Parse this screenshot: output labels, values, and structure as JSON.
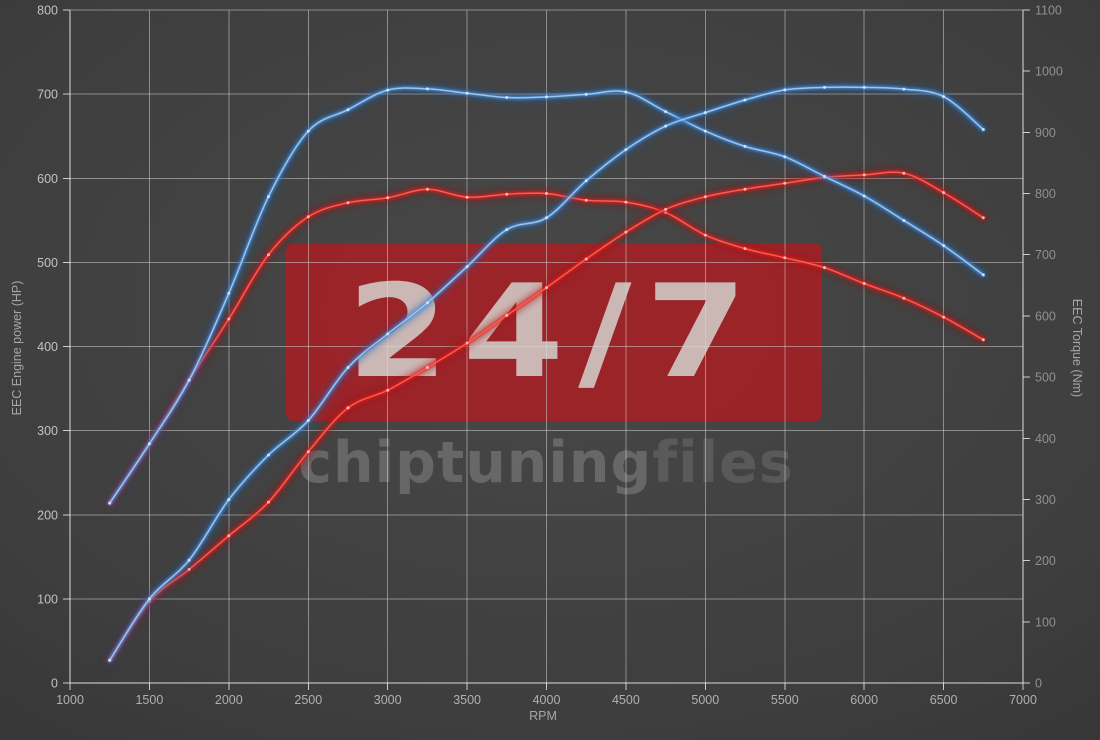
{
  "palette": {
    "bg_center": "#484848",
    "bg_mid": "#3e3e3e",
    "bg_deep": "#323232",
    "bg_edge": "#262626",
    "grid": "rgba(218,218,218,0.50)",
    "frame": "rgba(240,240,240,0.80)",
    "tick_label": "#c2c2c2",
    "tick_label_right": "#909090",
    "tick_label_bottom": "#b0b0b0",
    "axis_title": "#a6a6a6",
    "watermark_box": "rgba(176,28,34,0.80)",
    "watermark_big": "rgba(208,201,196,0.90)",
    "watermark_strong": "rgba(255,255,255,0.19)",
    "watermark_light": "rgba(255,255,255,0.12)"
  },
  "watermark": {
    "big": "24/7",
    "brand_strong": "chiptuning",
    "brand_light": "files"
  },
  "chart_data": {
    "type": "line",
    "title": "",
    "xlabel": "RPM",
    "ylabel_left": "EEC Engine power (HP)",
    "ylabel_right": "EEC Torque (Nm)",
    "xlim": [
      1000,
      7000
    ],
    "ylim_left": [
      0,
      800
    ],
    "ylim_right": [
      0,
      1100
    ],
    "x_ticks": [
      1000,
      1500,
      2000,
      2500,
      3000,
      3500,
      4000,
      4500,
      5000,
      5500,
      6000,
      6500,
      7000
    ],
    "left_ticks": [
      0,
      100,
      200,
      300,
      400,
      500,
      600,
      700,
      800
    ],
    "right_ticks": [
      0,
      100,
      200,
      300,
      400,
      500,
      600,
      700,
      800,
      900,
      1000,
      1100
    ],
    "grid": true,
    "legend": "none",
    "rpm": [
      1250,
      1500,
      1750,
      2000,
      2250,
      2500,
      2750,
      3000,
      3250,
      3500,
      3750,
      4000,
      4250,
      4500,
      4750,
      5000,
      5250,
      5500,
      5750,
      6000,
      6250,
      6500,
      6750
    ],
    "series": [
      {
        "id": "original-torque",
        "axis": "right",
        "unit": "Nm",
        "colors": {
          "glow": "#a50d0d",
          "mid": "#e11d1d",
          "core": "#ff5e52",
          "dot": "#ffc9c2"
        },
        "values": [
          294,
          391,
          495,
          595,
          700,
          762,
          785,
          793,
          807,
          794,
          799,
          800,
          789,
          786,
          769,
          732,
          710,
          695,
          679,
          653,
          629,
          598,
          561
        ]
      },
      {
        "id": "original-power",
        "axis": "left",
        "unit": "HP",
        "colors": {
          "glow": "#a50d0d",
          "mid": "#e11d1d",
          "core": "#ff5e52",
          "dot": "#ffc9c2"
        },
        "values": [
          27,
          97,
          135,
          175,
          215,
          275,
          327,
          348,
          375,
          404,
          437,
          470,
          504,
          536,
          563,
          578,
          587,
          594,
          601,
          604,
          606,
          583,
          553
        ]
      },
      {
        "id": "tuned-torque",
        "axis": "right",
        "unit": "Nm",
        "colors": {
          "glow": "#1c5fae",
          "mid": "#4a90dd",
          "core": "#9ec9f0",
          "dot": "#d9ebfc"
        },
        "values": [
          294,
          391,
          495,
          637,
          795,
          902,
          937,
          969,
          971,
          964,
          957,
          958,
          962,
          966,
          934,
          902,
          877,
          860,
          828,
          796,
          756,
          715,
          667
        ]
      },
      {
        "id": "tuned-power",
        "axis": "left",
        "unit": "HP",
        "colors": {
          "glow": "#1c5fae",
          "mid": "#4a90dd",
          "core": "#9ec9f0",
          "dot": "#d9ebfc"
        },
        "values": [
          27,
          100,
          146,
          218,
          271,
          312,
          375,
          415,
          452,
          495,
          539,
          553,
          597,
          634,
          662,
          678,
          693,
          705,
          708,
          708,
          706,
          697,
          658
        ]
      }
    ]
  }
}
